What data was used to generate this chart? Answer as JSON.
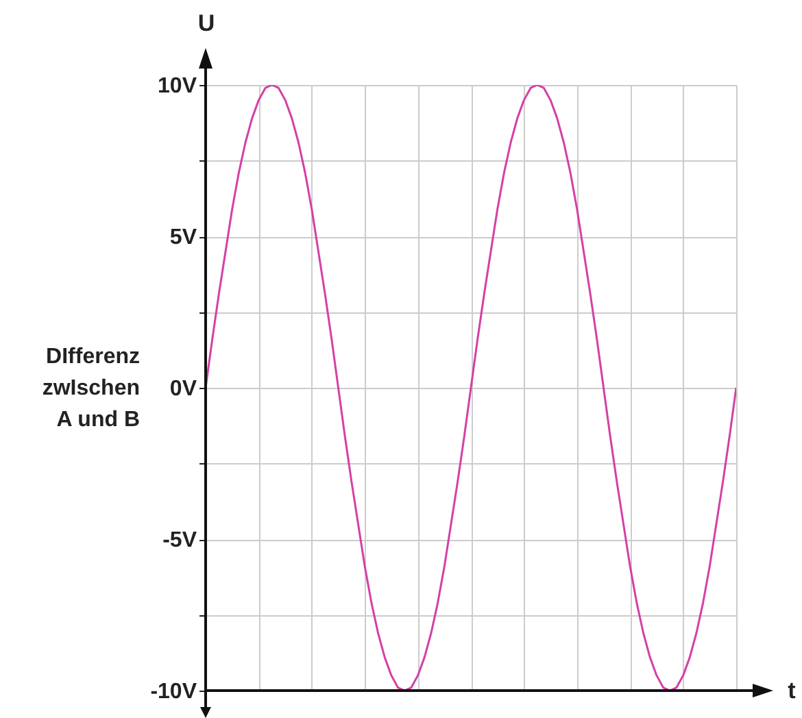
{
  "chart_data": {
    "type": "line",
    "xlabel": "t",
    "ylabel": "U",
    "annotations": [
      "DIfferenz\nzwIschen\nA und B"
    ],
    "categories": [
      null,
      null,
      null,
      null,
      null,
      null,
      null,
      null,
      null,
      null,
      null,
      null,
      null,
      null,
      null,
      null,
      null,
      null,
      null,
      null,
      null,
      null,
      null,
      null,
      null,
      null,
      null,
      null,
      null,
      null,
      null,
      null,
      null,
      null,
      null,
      null,
      null,
      null,
      null,
      null,
      null,
      null,
      null,
      null,
      null,
      null,
      null,
      null,
      null,
      null,
      null,
      null,
      null,
      null,
      null,
      null,
      null,
      null,
      null,
      null,
      null,
      null,
      null,
      null,
      null,
      null,
      null,
      null,
      null,
      null,
      null,
      null,
      null,
      null,
      null,
      null,
      null,
      null,
      null,
      null,
      null
    ],
    "series": [
      {
        "color": "#d53fa6",
        "values": [
          0,
          1.6,
          3.1,
          4.5,
          5.9,
          7.1,
          8.1,
          8.9,
          9.5,
          9.9,
          10,
          9.9,
          9.5,
          8.9,
          8.1,
          7.1,
          5.9,
          4.5,
          3.1,
          1.6,
          0,
          -1.6,
          -3.1,
          -4.5,
          -5.9,
          -7.1,
          -8.1,
          -8.9,
          -9.5,
          -9.9,
          -10,
          -9.9,
          -9.5,
          -8.9,
          -8.1,
          -7.1,
          -5.9,
          -4.5,
          -3.1,
          -1.6,
          0,
          1.6,
          3.1,
          4.5,
          5.9,
          7.1,
          8.1,
          8.9,
          9.5,
          9.9,
          10,
          9.9,
          9.5,
          8.9,
          8.1,
          7.1,
          5.9,
          4.5,
          3.1,
          1.6,
          0,
          -1.6,
          -3.1,
          -4.5,
          -5.9,
          -7.1,
          -8.1,
          -8.9,
          -9.5,
          -9.9,
          -10,
          -9.9,
          -9.5,
          -8.9,
          -8.1,
          -7.1,
          -5.9,
          -4.5,
          -3.1,
          -1.6,
          0
        ]
      }
    ],
    "ylim": [
      -10,
      10
    ],
    "yticks": [
      {
        "value": -10,
        "label": "-10V"
      },
      {
        "value": -7.5,
        "label": null
      },
      {
        "value": -5,
        "label": "-5V"
      },
      {
        "value": -2.5,
        "label": null
      },
      {
        "value": 0,
        "label": "0V"
      },
      {
        "value": 2.5,
        "label": null
      },
      {
        "value": 5,
        "label": "5V"
      },
      {
        "value": 7.5,
        "label": null
      },
      {
        "value": 10,
        "label": "10V"
      }
    ],
    "grid": true,
    "tick_labels": "y",
    "line_style": "solid",
    "marker": "none"
  }
}
